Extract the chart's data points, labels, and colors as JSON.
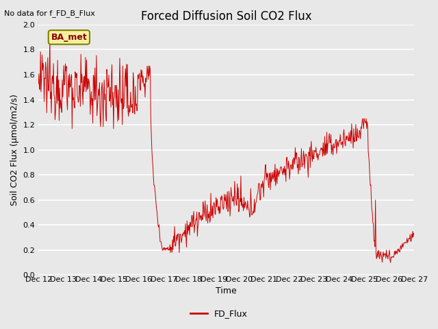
{
  "title": "Forced Diffusion Soil CO2 Flux",
  "no_data_label": "No data for f_FD_B_Flux",
  "ylabel": "Soil CO2 Flux (μmol/m2/s)",
  "xlabel": "Time",
  "legend_label": "FD_Flux",
  "box_label": "BA_met",
  "ylim": [
    0.0,
    2.0
  ],
  "yticks": [
    0.0,
    0.2,
    0.4,
    0.6,
    0.8,
    1.0,
    1.2,
    1.4,
    1.6,
    1.8,
    2.0
  ],
  "xtick_labels": [
    "Dec 12",
    "Dec 13",
    "Dec 14",
    "Dec 15",
    "Dec 16",
    "Dec 17",
    "Dec 18",
    "Dec 19",
    "Dec 20",
    "Dec 21",
    "Dec 22",
    "Dec 23",
    "Dec 24",
    "Dec 25",
    "Dec 26",
    "Dec 27"
  ],
  "line_color": "#cc0000",
  "fig_bg_color": "#e8e8e8",
  "plot_bg_color": "#e8e8e8",
  "grid_color": "#ffffff",
  "title_fontsize": 12,
  "label_fontsize": 9,
  "tick_fontsize": 8,
  "no_data_fontsize": 8
}
